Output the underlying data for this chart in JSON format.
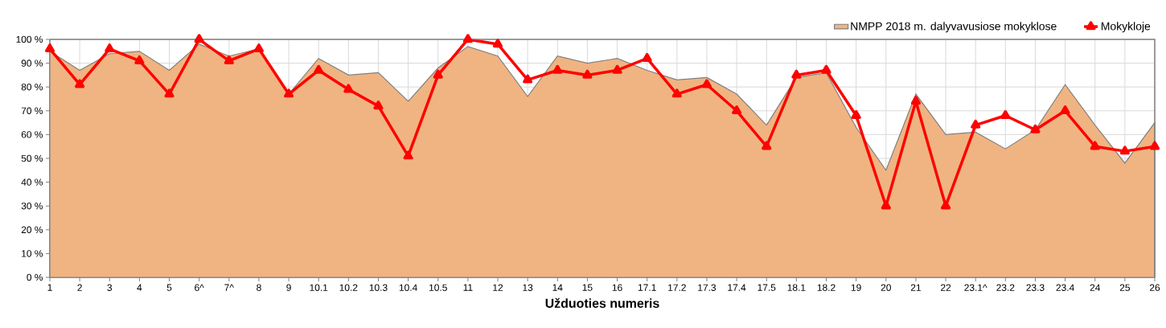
{
  "chart_data": {
    "type": "line",
    "xlabel": "Užduoties numeris",
    "categories": [
      "1",
      "2",
      "3",
      "4",
      "5",
      "6^",
      "7^",
      "8",
      "9",
      "10.1",
      "10.2",
      "10.3",
      "10.4",
      "10.5",
      "11",
      "12",
      "13",
      "14",
      "15",
      "16",
      "17.1",
      "17.2",
      "17.3",
      "17.4",
      "17.5",
      "18.1",
      "18.2",
      "19",
      "20",
      "21",
      "22",
      "23.1^",
      "23.2",
      "23.3",
      "23.4",
      "24",
      "25",
      "26"
    ],
    "series": [
      {
        "name": "NMPP 2018 m. dalyvavusiose mokyklose",
        "type": "area",
        "color": "#f0b482",
        "values": [
          95,
          87,
          94,
          95,
          87,
          98,
          93,
          96,
          77,
          92,
          85,
          86,
          74,
          88,
          97,
          93,
          76,
          93,
          90,
          92,
          87,
          83,
          84,
          77,
          64,
          84,
          86,
          63,
          45,
          77,
          60,
          61,
          54,
          62,
          81,
          64,
          48,
          65
        ]
      },
      {
        "name": "Mokykloje",
        "color": "#ff0000",
        "marker": "triangle",
        "values": [
          96,
          81,
          96,
          91,
          77,
          100,
          91,
          96,
          77,
          87,
          79,
          72,
          51,
          85,
          100,
          98,
          83,
          87,
          85,
          87,
          92,
          77,
          81,
          70,
          55,
          85,
          87,
          68,
          30,
          74,
          30,
          64,
          68,
          62,
          70,
          55,
          53,
          55
        ]
      }
    ],
    "ylim": [
      0,
      100
    ],
    "yticks": [
      {
        "value": 0,
        "label": "0 %"
      },
      {
        "value": 10,
        "label": "10 %"
      },
      {
        "value": 20,
        "label": "20 %"
      },
      {
        "value": 30,
        "label": "30 %"
      },
      {
        "value": 40,
        "label": "40 %"
      },
      {
        "value": 50,
        "label": "50 %"
      },
      {
        "value": 60,
        "label": "60 %"
      },
      {
        "value": 70,
        "label": "70 %"
      },
      {
        "value": 80,
        "label": "80 %"
      },
      {
        "value": 90,
        "label": "90 %"
      },
      {
        "value": 100,
        "label": "100 %"
      }
    ],
    "grid": true,
    "legend": "top right"
  }
}
